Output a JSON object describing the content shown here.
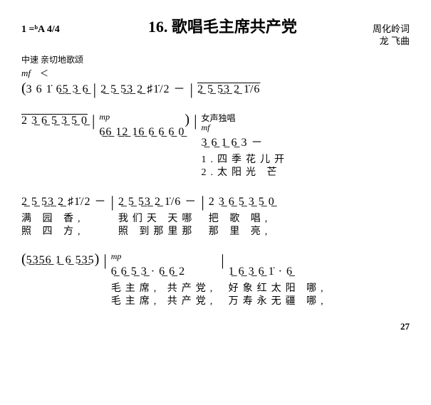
{
  "header": {
    "key_signature": "1 =ᵇA 4/4",
    "title": "16. 歌唱毛主席共产党",
    "lyricist": "周化岭词",
    "composer": "龙 飞曲"
  },
  "tempo": {
    "mark": "中速  亲切地歌颂",
    "dynamics_left": "mf"
  },
  "line1": {
    "open_paren": "(",
    "m1_notes": "3  6   1̇ 6̲5̲ 3̲ 6̲",
    "m2_notes": "2̲ 5̲ 5̲3̲ 2̲ ♯1̇/2  －",
    "m3_notes": "2̲ 5̲ 5̲3̲ 2̲ 1̇/6"
  },
  "line2": {
    "m1_notes": "2    3̲ 6̲ 5̲ 3̲ 5̲ 0̲",
    "m2_dyn": "mp",
    "m2_notes": "6̲6̲ 1̲2̲ 1̲6̲ 6̲ 6̲ 6̲ 0̲",
    "close_paren": ")",
    "m3_ann_top": "女声独唱",
    "m3_dyn": "mf",
    "m3_notes": "3̲ 6̲ 1̲ 6̲ 3  －",
    "m3_lyric1": "1.四季花儿开",
    "m3_lyric2": "2.太阳光  芒"
  },
  "line3": {
    "m1_notes": "2̲ 5̲ 5̲3̲ 2̲ ♯1̇/2  －",
    "m1_lyric1": "满  园    香,",
    "m1_lyric2": "照  四    方,",
    "m2_notes": "2̲ 5̲ 5̲3̲ 2̲ 1̇/6  －",
    "m2_lyric1": "我们天 天哪",
    "m2_lyric2": "照 到那里那",
    "m3_notes": "2    3̲ 6̲ 5̲ 3̲ 5̲ 0̲",
    "m3_lyric1": "把   歌   唱,",
    "m3_lyric2": "那   里   亮,"
  },
  "line4": {
    "open_paren": "(",
    "m1_notes": "5̲3̲5̲6̲ 1̲ 6̲ 5̲3̲5",
    "close_paren": ")",
    "m2_dyn": "mp",
    "m2_notes": "6̲ 6̲ 5̲ 3̲ · 6̲ 6̲ 2",
    "m2_lyric1": "毛主席, 共产党,",
    "m2_lyric2": "毛主席, 共产党,",
    "m3_notes": "1̲ 6̲ 3̲ 6̲ 1̇ ·    6̲",
    "m3_lyric1": "好象红太阳   哪,",
    "m3_lyric2": "万寿永无疆   哪,"
  },
  "page_number": "27"
}
